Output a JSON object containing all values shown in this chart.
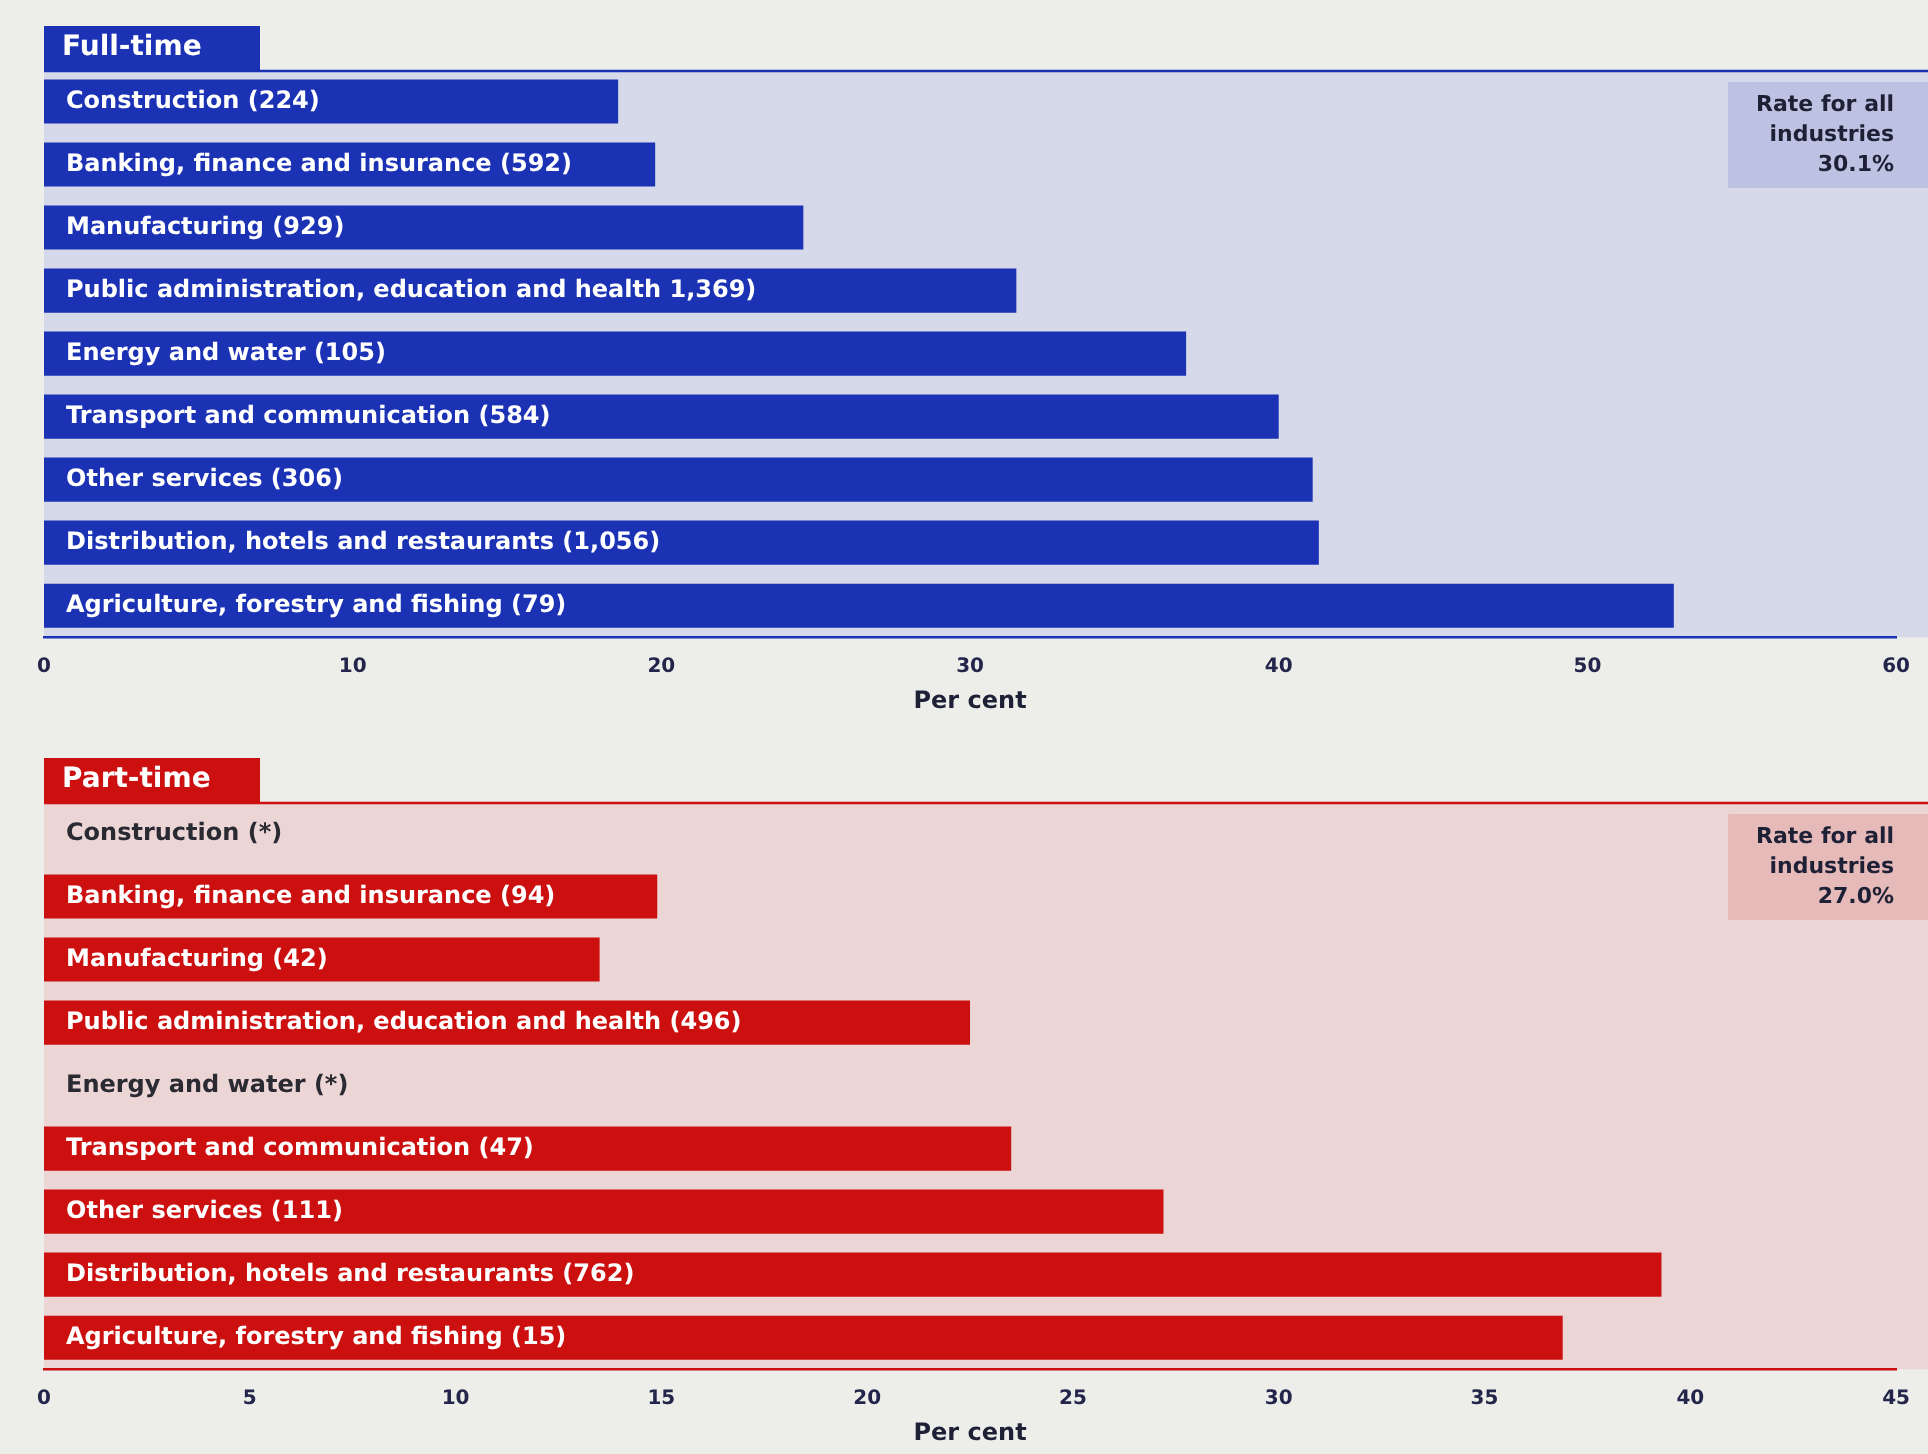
{
  "chart_data": [
    {
      "type": "bar",
      "orientation": "horizontal",
      "title": "Full-time",
      "categories": [
        "Construction (224)",
        "Banking, finance and insurance (592)",
        "Manufacturing (929)",
        "Public administration, education and health 1,369)",
        "Energy and water (105)",
        "Transport and communication (584)",
        "Other services (306)",
        "Distribution, hotels and restaurants (1,056)",
        "Agriculture, forestry and fishing (79)"
      ],
      "values": [
        18.6,
        19.8,
        24.6,
        31.5,
        37.0,
        40.0,
        41.1,
        41.3,
        52.8
      ],
      "color": "#1b32b4",
      "xlim": [
        0,
        60
      ],
      "xticks": [
        0,
        10,
        20,
        30,
        40,
        50,
        60
      ],
      "xlabel": "Per cent",
      "annotations": [
        "Rate for all industries 30.1%"
      ]
    },
    {
      "type": "bar",
      "orientation": "horizontal",
      "title": "Part-time",
      "categories": [
        "Construction (*)",
        "Banking, finance and insurance (94)",
        "Manufacturing (42)",
        "Public administration, education and health (496)",
        "Energy and water (*)",
        "Transport and communication (47)",
        "Other services (111)",
        "Distribution, hotels and restaurants (762)",
        "Agriculture, forestry and fishing (15)"
      ],
      "values": [
        null,
        14.9,
        13.5,
        22.5,
        null,
        23.5,
        27.2,
        39.3,
        36.9
      ],
      "color": "#cc1010",
      "xlim": [
        0,
        45
      ],
      "xticks": [
        0,
        5,
        10,
        15,
        20,
        25,
        30,
        35,
        40,
        45
      ],
      "xlabel": "Per cent",
      "annotations": [
        "Rate for all industries 27.0%"
      ]
    }
  ]
}
